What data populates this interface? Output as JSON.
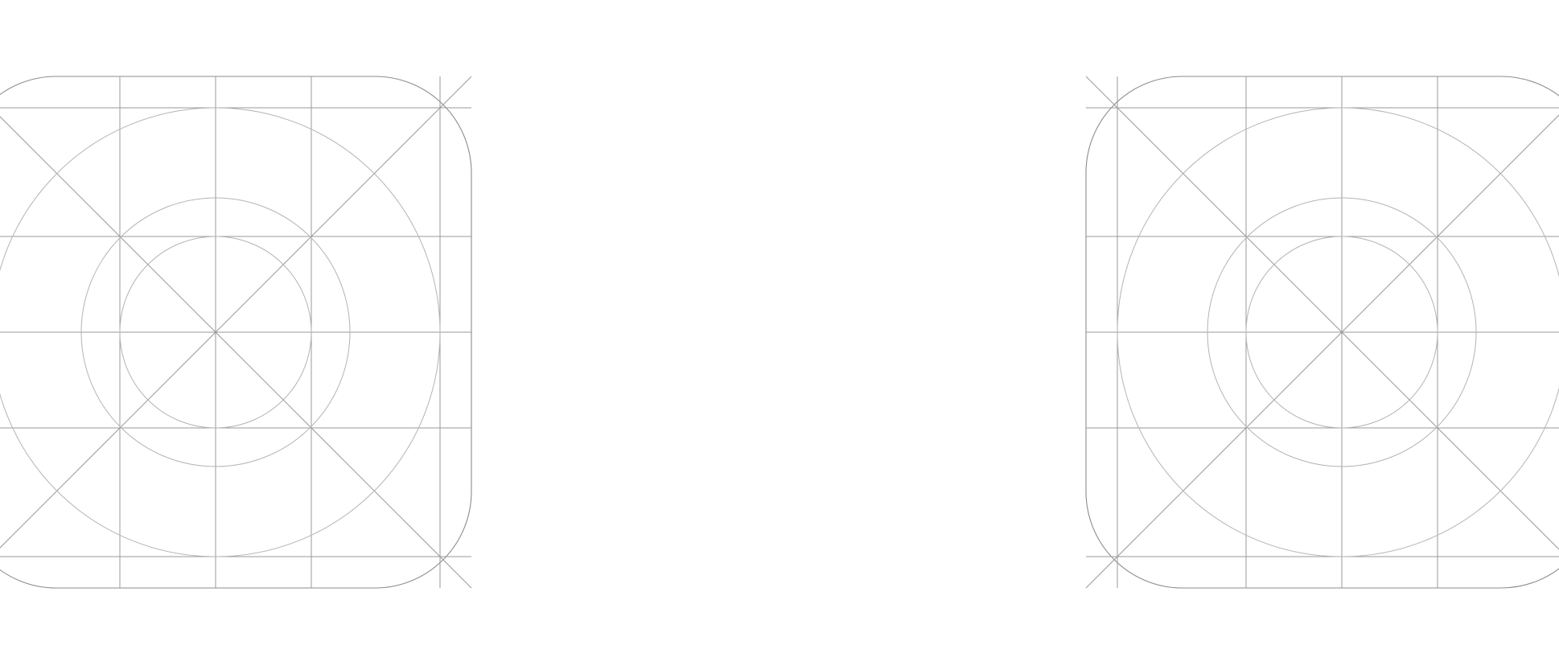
{
  "figure": {
    "description_items": [],
    "colors": {
      "background": "#ffffff",
      "grid_line": "#9a9a9a",
      "guide_circle": "#b4b4b4",
      "icon_outline": "#8c8c8c"
    }
  },
  "templates": [
    {
      "name": "icon-grid-template-left"
    },
    {
      "name": "icon-grid-template-right"
    }
  ]
}
